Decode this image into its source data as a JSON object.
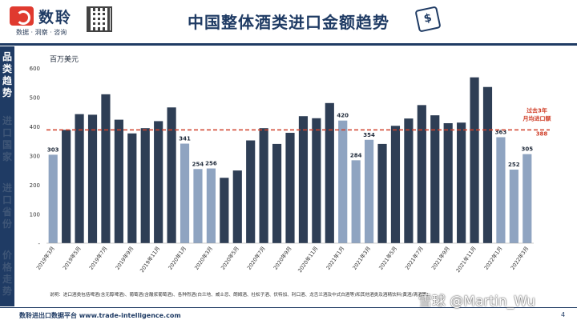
{
  "header": {
    "brand_name": "数聆",
    "brand_tagline": "数据 · 洞察 · 咨询",
    "title": "中国整体酒类进口金额趋势",
    "icon_glyph": "$"
  },
  "sidebar": {
    "items": [
      {
        "label": "品\n类\n趋\n势",
        "active": true
      },
      {
        "label": "进\n口\n国\n家",
        "active": false
      },
      {
        "label": "进\n口\n省\n份",
        "active": false
      },
      {
        "label": "价\n格\n走\n势",
        "active": false
      }
    ]
  },
  "chart_data": {
    "type": "bar",
    "unit_label": "百万美元",
    "ylim": [
      0,
      600
    ],
    "yticks": [
      "-",
      "100",
      "200",
      "300",
      "400",
      "500",
      "600"
    ],
    "categories": [
      "2019年3月",
      "2019年4月",
      "2019年5月",
      "2019年6月",
      "2019年7月",
      "2019年8月",
      "2019年9月",
      "2019年10月",
      "2019年11月",
      "2019年12月",
      "2020年1月",
      "2020年2月",
      "2020年3月",
      "2020年4月",
      "2020年5月",
      "2020年6月",
      "2020年7月",
      "2020年8月",
      "2020年9月",
      "2020年10月",
      "2020年11月",
      "2020年12月",
      "2021年1月",
      "2021年2月",
      "2021年3月",
      "2021年4月",
      "2021年5月",
      "2021年6月",
      "2021年7月",
      "2021年8月",
      "2021年9月",
      "2021年10月",
      "2021年11月",
      "2021年12月",
      "2022年1月",
      "2022年2月",
      "2022年3月"
    ],
    "xtick_labels": [
      "2019年3月",
      "",
      "2019年5月",
      "",
      "2019年7月",
      "",
      "2019年9月",
      "",
      "2019年11月",
      "",
      "2020年1月",
      "",
      "2020年3月",
      "",
      "2020年5月",
      "",
      "2020年7月",
      "",
      "2020年9月",
      "",
      "2020年11月",
      "",
      "2021年1月",
      "",
      "2021年3月",
      "",
      "2021年5月",
      "",
      "2021年7月",
      "",
      "2021年9月",
      "",
      "2021年11月",
      "",
      "2022年1月",
      "",
      "2022年3月"
    ],
    "values": [
      303,
      388,
      442,
      440,
      510,
      423,
      376,
      394,
      418,
      465,
      341,
      254,
      256,
      224,
      249,
      352,
      394,
      340,
      378,
      435,
      428,
      480,
      420,
      284,
      354,
      340,
      402,
      427,
      473,
      438,
      411,
      413,
      568,
      535,
      363,
      252,
      305
    ],
    "highlight": [
      true,
      false,
      false,
      false,
      false,
      false,
      false,
      false,
      false,
      false,
      true,
      true,
      true,
      false,
      false,
      false,
      false,
      false,
      false,
      false,
      false,
      false,
      true,
      true,
      true,
      false,
      false,
      false,
      false,
      false,
      false,
      false,
      false,
      false,
      true,
      true,
      true
    ],
    "data_labels": {
      "0": "303",
      "10": "341",
      "11": "254",
      "12": "256",
      "22": "420",
      "23": "284",
      "24": "354",
      "34": "363",
      "35": "252",
      "36": "305"
    },
    "reference_line": {
      "value": 388,
      "label_line1": "过去3年",
      "label_line2": "月均进口额",
      "value_label": "388"
    },
    "colors": {
      "main": "#2e3e55",
      "highlight": "#8fa4c1",
      "reference": "#d0402a",
      "axis": "#555555"
    },
    "note": "说明：进口酒类包括啤酒(含无醇啤酒)、葡萄酒(含酸浆葡萄酒)、各种烈酒(白兰地、威士忌、朗姆酒、杜松子酒、伏特加、利口酒、龙舌兰酒及中式白酒等)和其他酒类及酒精饮料(黄酒/清酒等)"
  },
  "footer": {
    "text": "数聆进出口数据平台 www.trade-intelligence.com",
    "page_number": "4",
    "watermark": "雪球 @Martin_Wu"
  }
}
